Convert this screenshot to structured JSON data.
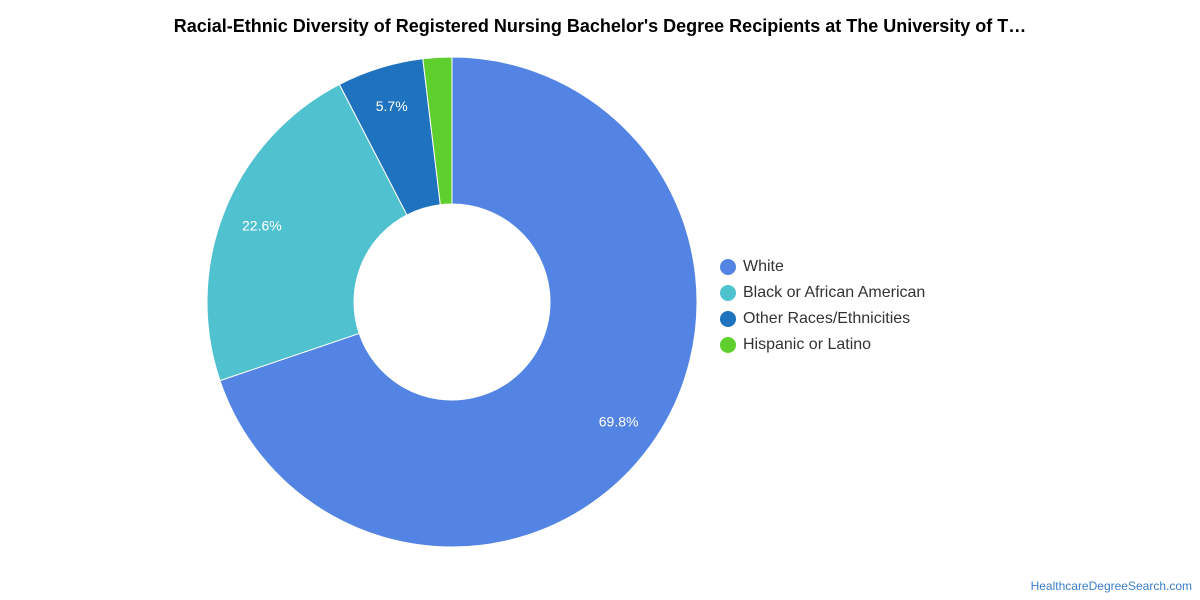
{
  "colors": {
    "White": "#5484e3",
    "Black or African American": "#50c1cf",
    "Other Races/Ethnicities": "#1e72be",
    "Hispanic or Latino": "#5fcf2d"
  },
  "footer": {
    "source": "HealthcareDegreeSearch.com"
  },
  "chart_data": {
    "type": "pie",
    "variant": "donut",
    "title": "Racial-Ethnic Diversity of Registered Nursing Bachelor's Degree Recipients at The University of T…",
    "legend_position": "right",
    "categories": [
      "White",
      "Black or African American",
      "Other Races/Ethnicities",
      "Hispanic or Latino"
    ],
    "values": [
      69.8,
      22.6,
      5.7,
      1.9
    ],
    "data_labels": [
      "69.8%",
      "22.6%",
      "5.7%",
      ""
    ]
  }
}
